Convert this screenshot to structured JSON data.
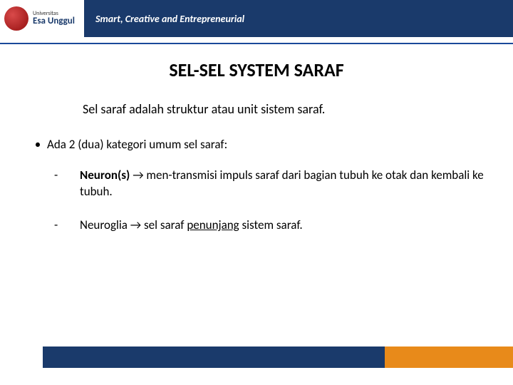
{
  "header": {
    "logo_univ": "Universitas",
    "logo_name": "Esa Unggul",
    "tagline": "Smart, Creative and Entrepreneurial"
  },
  "slide": {
    "title": "SEL-SEL  SYSTEM  SARAF",
    "intro": "Sel saraf adalah struktur atau unit sistem saraf.",
    "bullet1": "Ada 2 (dua) kategori umum sel saraf:",
    "sub1_term": "Neuron(s)",
    "sub1_rest": " men-transmisi impuls saraf dari bagian tubuh ke otak dan kembali ke tubuh.",
    "sub2_term": "Neuroglia",
    "sub2_mid": " sel saraf ",
    "sub2_under": "penunjang",
    "sub2_end": " sistem saraf."
  },
  "colors": {
    "header_bg": "#1a3a6b",
    "orange": "#e88a1a",
    "blue_line": "#1a4a9a"
  }
}
